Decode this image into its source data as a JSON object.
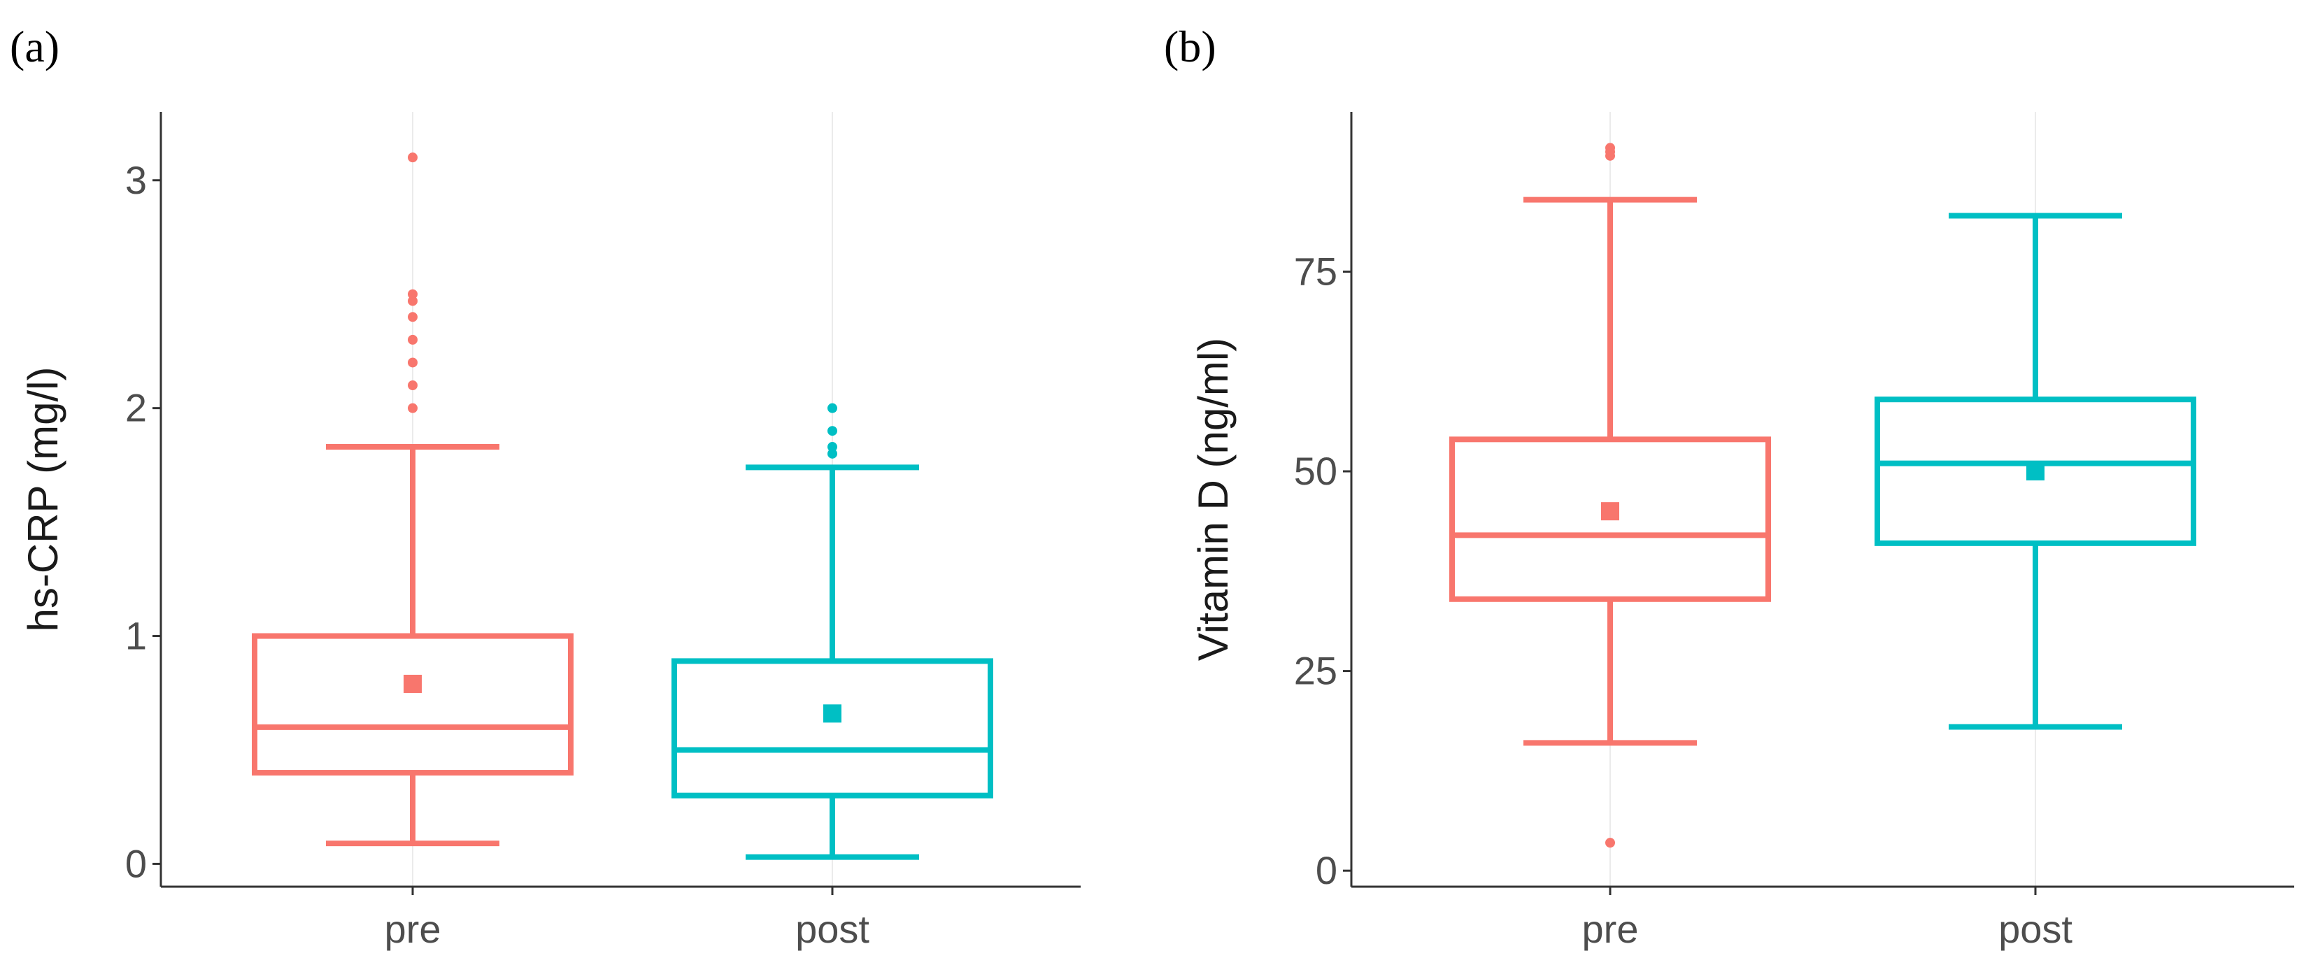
{
  "panels": [
    "(a)",
    "(b)"
  ],
  "colors": {
    "pre": "#F8766D",
    "post": "#00BFC4"
  },
  "chart_data": [
    {
      "type": "boxplot",
      "panel": "(a)",
      "ylabel": "hs-CRP (mg/l)",
      "xlabel": "",
      "categories": [
        "pre",
        "post"
      ],
      "ylim": [
        -0.1,
        3.3
      ],
      "yticks": [
        0,
        1,
        2,
        3
      ],
      "y_tick_labels": [
        "0",
        "1",
        "2",
        "3"
      ],
      "grid": "vertical at categories",
      "boxes": [
        {
          "group": "pre",
          "whisker_low": 0.09,
          "q1": 0.4,
          "median": 0.6,
          "q3": 1.0,
          "whisker_high": 1.83,
          "mean": 0.79,
          "outliers": [
            2.0,
            2.1,
            2.2,
            2.3,
            2.4,
            2.47,
            2.5,
            3.1
          ]
        },
        {
          "group": "post",
          "whisker_low": 0.03,
          "q1": 0.3,
          "median": 0.5,
          "q3": 0.89,
          "whisker_high": 1.74,
          "mean": 0.66,
          "outliers": [
            1.8,
            1.83,
            1.9,
            2.0
          ]
        }
      ]
    },
    {
      "type": "boxplot",
      "panel": "(b)",
      "ylabel": "Vitamin D (ng/ml)",
      "xlabel": "",
      "categories": [
        "pre",
        "post"
      ],
      "ylim": [
        -2,
        95
      ],
      "yticks": [
        0,
        25,
        50,
        75
      ],
      "y_tick_labels": [
        "0",
        "25",
        "50",
        "75"
      ],
      "grid": "vertical at categories",
      "boxes": [
        {
          "group": "pre",
          "whisker_low": 16,
          "q1": 34,
          "median": 42,
          "q3": 54,
          "whisker_high": 84,
          "mean": 45,
          "outliers": [
            3.5,
            89.5,
            90,
            90.5
          ]
        },
        {
          "group": "post",
          "whisker_low": 18,
          "q1": 41,
          "median": 51,
          "q3": 59,
          "whisker_high": 82,
          "mean": 50,
          "outliers": []
        }
      ]
    }
  ]
}
